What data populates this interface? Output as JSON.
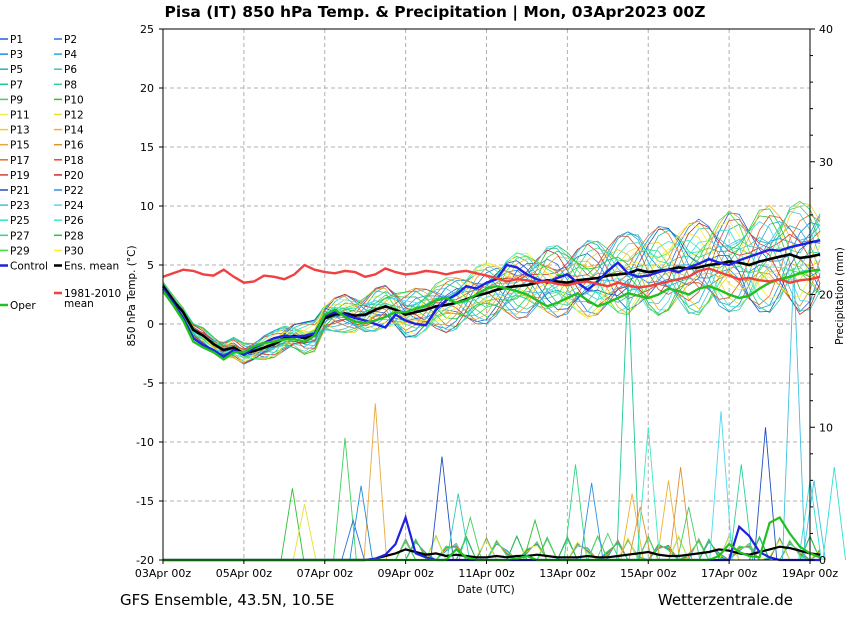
{
  "title": "Pisa  (IT)  850 hPa Temp. & Precipitation | Mon, 03Apr2023 00Z",
  "footer_left": "GFS Ensemble, 43.5N, 10.5E",
  "footer_right": "Wetterzentrale.de",
  "chart_data": {
    "type": "line",
    "xlabel": "Date (UTC)",
    "ylabel_left": "850 hPa Temp. (°C)",
    "ylabel_right": "Precipitation (mm)",
    "ylim_left": [
      -20,
      25
    ],
    "ylim_right": [
      0,
      40
    ],
    "x_range_days": [
      0,
      16
    ],
    "x_step_days": 0.25,
    "x_tick_labels": [
      "03Apr 00z",
      "05Apr 00z",
      "07Apr 00z",
      "09Apr 00z",
      "11Apr 00z",
      "13Apr 00z",
      "15Apr 00z",
      "17Apr 00z",
      "19Apr 00z"
    ],
    "y_tick_labels_left": [
      "25",
      "20",
      "15",
      "10",
      "5",
      "0",
      "-5",
      "-10",
      "-15",
      "-20"
    ],
    "y_tick_labels_right": [
      "40",
      "30",
      "20",
      "10",
      "0"
    ],
    "grid": true,
    "legend": {
      "placement": "left",
      "entries": [
        {
          "label": "P1",
          "color": "#1f5fd6"
        },
        {
          "label": "P2",
          "color": "#2f6fe0"
        },
        {
          "label": "P3",
          "color": "#1e90d8"
        },
        {
          "label": "P4",
          "color": "#28a8e8"
        },
        {
          "label": "P5",
          "color": "#20b0c8"
        },
        {
          "label": "P6",
          "color": "#30c8c0"
        },
        {
          "label": "P7",
          "color": "#20c890"
        },
        {
          "label": "P8",
          "color": "#30d098"
        },
        {
          "label": "P9",
          "color": "#40d060"
        },
        {
          "label": "P10",
          "color": "#30c030"
        },
        {
          "label": "P11",
          "color": "#f0f040"
        },
        {
          "label": "P12",
          "color": "#e8e030"
        },
        {
          "label": "P13",
          "color": "#f0d020"
        },
        {
          "label": "P14",
          "color": "#f0b030"
        },
        {
          "label": "P15",
          "color": "#e8a840"
        },
        {
          "label": "P16",
          "color": "#e09030"
        },
        {
          "label": "P17",
          "color": "#e07030"
        },
        {
          "label": "P18",
          "color": "#d05030"
        },
        {
          "label": "P19",
          "color": "#d04040"
        },
        {
          "label": "P20",
          "color": "#c03030"
        },
        {
          "label": "P21",
          "color": "#2050c0"
        },
        {
          "label": "P22",
          "color": "#3090e0"
        },
        {
          "label": "P23",
          "color": "#40c0e0"
        },
        {
          "label": "P24",
          "color": "#50d8f0"
        },
        {
          "label": "P25",
          "color": "#30e0d0"
        },
        {
          "label": "P26",
          "color": "#40e8c0"
        },
        {
          "label": "P27",
          "color": "#30d880"
        },
        {
          "label": "P28",
          "color": "#20c840"
        },
        {
          "label": "P29",
          "color": "#40e040"
        },
        {
          "label": "P30",
          "color": "#f8f030"
        },
        {
          "label": "Control",
          "color": "#2020e0"
        },
        {
          "label": "Ens. mean",
          "color": "#000000"
        },
        {
          "label": "1981-2010 mean",
          "color": "#f04040"
        },
        {
          "label": "Oper",
          "color": "#20c020"
        }
      ]
    },
    "series_main": [
      {
        "name": "Ens. mean",
        "color": "#000000",
        "values": [
          3.2,
          2.0,
          1.0,
          -0.5,
          -1.0,
          -1.7,
          -2.2,
          -2.0,
          -2.5,
          -2.3,
          -2.0,
          -1.7,
          -1.2,
          -1.0,
          -1.2,
          -1.0,
          0.5,
          0.8,
          0.9,
          0.7,
          0.8,
          1.2,
          1.5,
          1.2,
          0.8,
          1.0,
          1.2,
          1.5,
          1.6,
          1.8,
          2.1,
          2.4,
          2.6,
          2.9,
          3.1,
          3.2,
          3.3,
          3.5,
          3.7,
          3.6,
          3.5,
          3.7,
          3.8,
          3.9,
          4.1,
          4.2,
          4.3,
          4.6,
          4.4,
          4.5,
          4.6,
          4.8,
          4.7,
          4.8,
          5.0,
          5.1,
          5.3,
          5.2,
          5.0,
          5.3,
          5.5,
          5.7,
          5.9,
          5.6,
          5.7,
          5.9
        ]
      },
      {
        "name": "Control",
        "color": "#2020e0",
        "values": [
          3.0,
          1.8,
          0.5,
          -1.2,
          -1.8,
          -2.2,
          -2.8,
          -2.2,
          -2.6,
          -2.0,
          -1.6,
          -1.2,
          -1.0,
          -1.1,
          -1.0,
          -0.8,
          0.7,
          1.0,
          0.8,
          0.5,
          0.3,
          0.0,
          -0.3,
          0.8,
          0.3,
          0.0,
          -0.1,
          1.2,
          2.0,
          2.5,
          3.2,
          3.0,
          3.5,
          3.8,
          5.0,
          4.8,
          4.2,
          3.8,
          3.5,
          3.9,
          4.2,
          3.5,
          2.9,
          3.6,
          4.5,
          5.2,
          4.3,
          4.0,
          4.1,
          4.4,
          4.6,
          4.4,
          4.8,
          5.1,
          5.5,
          5.2,
          5.0,
          5.4,
          5.7,
          6.0,
          6.3,
          6.2,
          6.5,
          6.7,
          6.9,
          7.1
        ]
      },
      {
        "name": "Oper",
        "color": "#20c020",
        "values": [
          2.8,
          1.6,
          0.3,
          -1.5,
          -2.0,
          -2.4,
          -3.0,
          -2.4,
          -2.4,
          -1.9,
          -1.6,
          -1.5,
          -1.3,
          -1.3,
          -1.5,
          -1.0,
          0.8,
          1.2,
          0.6,
          0.2,
          0.1,
          0.3,
          0.6,
          1.0,
          1.0,
          1.3,
          1.5,
          2.0,
          2.2,
          1.8,
          2.0,
          2.5,
          3.0,
          3.2,
          3.0,
          2.8,
          2.5,
          2.0,
          1.5,
          1.8,
          2.2,
          2.6,
          2.0,
          1.5,
          1.8,
          2.2,
          2.6,
          2.4,
          2.2,
          2.5,
          3.0,
          2.8,
          2.5,
          3.0,
          3.2,
          2.9,
          2.5,
          2.2,
          2.4,
          3.0,
          3.5,
          3.8,
          4.0,
          4.3,
          4.5,
          4.6
        ]
      },
      {
        "name": "1981-2010 mean",
        "color": "#f04040",
        "values": [
          4.0,
          4.3,
          4.6,
          4.5,
          4.2,
          4.1,
          4.6,
          4.0,
          3.5,
          3.6,
          4.1,
          4.0,
          3.8,
          4.2,
          5.0,
          4.6,
          4.4,
          4.3,
          4.5,
          4.4,
          4.0,
          4.2,
          4.7,
          4.4,
          4.2,
          4.3,
          4.5,
          4.4,
          4.2,
          4.4,
          4.5,
          4.3,
          4.1,
          3.9,
          3.6,
          3.8,
          3.7,
          3.5,
          3.6,
          3.4,
          3.3,
          3.5,
          3.6,
          3.4,
          3.2,
          3.5,
          3.3,
          3.1,
          3.2,
          3.4,
          3.6,
          3.8,
          4.0,
          4.5,
          4.7,
          4.4,
          4.1,
          3.8,
          3.9,
          3.7,
          3.6,
          3.8,
          3.5,
          3.7,
          3.8,
          4.0
        ]
      }
    ],
    "precip_main": [
      {
        "name": "Ens. mean",
        "color": "#000000",
        "values": [
          0,
          0,
          0,
          0,
          0,
          0,
          0,
          0,
          0,
          0,
          0,
          0,
          0,
          0,
          0,
          0,
          0,
          0,
          0,
          0,
          0,
          0.1,
          0.3,
          0.5,
          0.8,
          0.6,
          0.4,
          0.5,
          0.3,
          0.4,
          0.3,
          0.2,
          0.2,
          0.3,
          0.2,
          0.3,
          0.3,
          0.4,
          0.3,
          0.2,
          0.2,
          0.2,
          0.3,
          0.2,
          0.2,
          0.3,
          0.4,
          0.5,
          0.6,
          0.4,
          0.3,
          0.3,
          0.4,
          0.5,
          0.6,
          0.8,
          0.7,
          0.5,
          0.4,
          0.6,
          0.8,
          1.0,
          0.9,
          0.7,
          0.5,
          0.4
        ]
      },
      {
        "name": "Control",
        "color": "#2020e0",
        "values": [
          0,
          0,
          0,
          0,
          0,
          0,
          0,
          0,
          0,
          0,
          0,
          0,
          0,
          0,
          0,
          0,
          0,
          0,
          0,
          0,
          0,
          0.1,
          0.4,
          1.2,
          3.2,
          0.5,
          0.2,
          0,
          0,
          0,
          0,
          0,
          0,
          0,
          0,
          0,
          0,
          0,
          0,
          0,
          0,
          0,
          0,
          0,
          0,
          0,
          0,
          0,
          0,
          0,
          0,
          0,
          0,
          0,
          0,
          0,
          0,
          2.5,
          1.8,
          0.6,
          0.2,
          0,
          0,
          0,
          0,
          0
        ]
      },
      {
        "name": "Oper",
        "color": "#20c020",
        "values": [
          0,
          0,
          0,
          0,
          0,
          0,
          0,
          0,
          0,
          0,
          0,
          0,
          0,
          0,
          0,
          0,
          0,
          0,
          0,
          0,
          0,
          0,
          0,
          0,
          0,
          0,
          0,
          0,
          0,
          0.8,
          0.2,
          0,
          0,
          0,
          0,
          0.1,
          0.3,
          0,
          0,
          0,
          0,
          0,
          0,
          0,
          0,
          0,
          0,
          0,
          0,
          0,
          0,
          0,
          0,
          0,
          0,
          0.3,
          1.2,
          0.6,
          0.3,
          0.2,
          2.8,
          3.2,
          2.0,
          1.0,
          0.5,
          0.2
        ]
      }
    ],
    "precip_spikes": [
      {
        "member": "P14",
        "day": 8.25,
        "mm": 11.8,
        "color": "#e8a840"
      },
      {
        "member": "P7",
        "day": 7.5,
        "mm": 9.2,
        "color": "#40d060"
      },
      {
        "member": "P9",
        "day": 6.2,
        "mm": 5.4,
        "color": "#30c030"
      },
      {
        "member": "P13",
        "day": 6.5,
        "mm": 4.2,
        "color": "#e8e030"
      },
      {
        "member": "P1",
        "day": 7.7,
        "mm": 3.0,
        "color": "#2f6fe0"
      },
      {
        "member": "P3",
        "day": 7.9,
        "mm": 5.6,
        "color": "#1e90d8"
      },
      {
        "member": "P21",
        "day": 9.9,
        "mm": 7.8,
        "color": "#2050c0"
      },
      {
        "member": "P5",
        "day": 10.3,
        "mm": 5.0,
        "color": "#30c8c0"
      },
      {
        "member": "P9",
        "day": 10.6,
        "mm": 3.2,
        "color": "#40d060"
      },
      {
        "member": "P10",
        "day": 12.2,
        "mm": 3.0,
        "color": "#30c030"
      },
      {
        "member": "P27",
        "day": 13.2,
        "mm": 7.2,
        "color": "#30d880"
      },
      {
        "member": "P22",
        "day": 13.6,
        "mm": 5.8,
        "color": "#3090e0"
      },
      {
        "member": "P9",
        "day": 14.0,
        "mm": 2.0,
        "color": "#40d060"
      },
      {
        "member": "P8",
        "day": 14.5,
        "mm": 21.2,
        "color": "#20c890"
      },
      {
        "member": "P14",
        "day": 14.6,
        "mm": 5.0,
        "color": "#f0b030"
      },
      {
        "member": "P16",
        "day": 14.8,
        "mm": 4.0,
        "color": "#e09030"
      },
      {
        "member": "P25",
        "day": 15.0,
        "mm": 10.0,
        "color": "#40e8c0"
      },
      {
        "member": "P15",
        "day": 15.5,
        "mm": 6.0,
        "color": "#f0b030"
      },
      {
        "member": "P17",
        "day": 15.8,
        "mm": 7.0,
        "color": "#e09030"
      },
      {
        "member": "P10",
        "day": 16.0,
        "mm": 4.0,
        "color": "#40d060"
      },
      {
        "member": "P24",
        "day": 16.8,
        "mm": 11.2,
        "color": "#50d8f0"
      },
      {
        "member": "P7",
        "day": 17.3,
        "mm": 7.2,
        "color": "#30d098"
      },
      {
        "member": "P21",
        "day": 17.9,
        "mm": 10.0,
        "color": "#2050c0"
      },
      {
        "member": "P23",
        "day": 18.6,
        "mm": 22.0,
        "color": "#40c0e0"
      },
      {
        "member": "P26",
        "day": 19.0,
        "mm": 6.0,
        "color": "#30e0d0"
      },
      {
        "member": "P23",
        "day": 19.1,
        "mm": 6.0,
        "color": "#40c0e0"
      },
      {
        "member": "P25",
        "day": 19.6,
        "mm": 7.0,
        "color": "#30e0d0"
      }
    ]
  }
}
